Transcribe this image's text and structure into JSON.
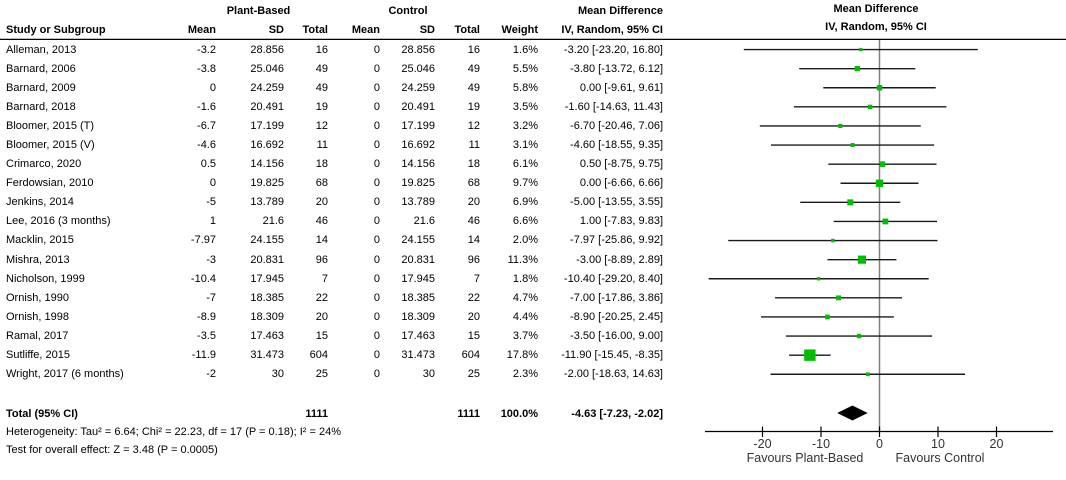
{
  "header": {
    "study": "Study or Subgroup",
    "group_pb": "Plant-Based",
    "group_ctrl": "Control",
    "mean": "Mean",
    "sd": "SD",
    "total": "Total",
    "weight": "Weight",
    "md_title": "Mean Difference",
    "md_sub": "IV, Random, 95% CI"
  },
  "colors": {
    "square": "#00bd00",
    "ci_line": "#1a1a1a",
    "zero_line": "#808080",
    "axis": "#000000",
    "diamond": "#000000"
  },
  "chart_data": {
    "type": "forest",
    "effect_measure": "Mean Difference",
    "method": "IV, Random, 95% CI",
    "x_ticks": [
      -20,
      -10,
      0,
      10,
      20
    ],
    "x_axis_range": [
      -29.8,
      29.7
    ],
    "favours_left": "Favours Plant-Based",
    "favours_right": "Favours Control",
    "studies": [
      {
        "name": "Alleman, 2013",
        "pb_mean": "-3.2",
        "pb_sd": "28.856",
        "pb_total": "16",
        "c_mean": "0",
        "c_sd": "28.856",
        "c_total": "16",
        "weight": "1.6%",
        "md_text": "-3.20 [-23.20, 16.80]",
        "md": -3.2,
        "lo": -23.2,
        "hi": 16.8,
        "w": 1.6
      },
      {
        "name": "Barnard, 2006",
        "pb_mean": "-3.8",
        "pb_sd": "25.046",
        "pb_total": "49",
        "c_mean": "0",
        "c_sd": "25.046",
        "c_total": "49",
        "weight": "5.5%",
        "md_text": "-3.80 [-13.72, 6.12]",
        "md": -3.8,
        "lo": -13.72,
        "hi": 6.12,
        "w": 5.5
      },
      {
        "name": "Barnard, 2009",
        "pb_mean": "0",
        "pb_sd": "24.259",
        "pb_total": "49",
        "c_mean": "0",
        "c_sd": "24.259",
        "c_total": "49",
        "weight": "5.8%",
        "md_text": "0.00 [-9.61, 9.61]",
        "md": 0,
        "lo": -9.61,
        "hi": 9.61,
        "w": 5.8
      },
      {
        "name": "Barnard, 2018",
        "pb_mean": "-1.6",
        "pb_sd": "20.491",
        "pb_total": "19",
        "c_mean": "0",
        "c_sd": "20.491",
        "c_total": "19",
        "weight": "3.5%",
        "md_text": "-1.60 [-14.63, 11.43]",
        "md": -1.6,
        "lo": -14.63,
        "hi": 11.43,
        "w": 3.5
      },
      {
        "name": "Bloomer, 2015 (T)",
        "pb_mean": "-6.7",
        "pb_sd": "17.199",
        "pb_total": "12",
        "c_mean": "0",
        "c_sd": "17.199",
        "c_total": "12",
        "weight": "3.2%",
        "md_text": "-6.70 [-20.46, 7.06]",
        "md": -6.7,
        "lo": -20.46,
        "hi": 7.06,
        "w": 3.2
      },
      {
        "name": "Bloomer, 2015 (V)",
        "pb_mean": "-4.6",
        "pb_sd": "16.692",
        "pb_total": "11",
        "c_mean": "0",
        "c_sd": "16.692",
        "c_total": "11",
        "weight": "3.1%",
        "md_text": "-4.60 [-18.55, 9.35]",
        "md": -4.6,
        "lo": -18.55,
        "hi": 9.35,
        "w": 3.1
      },
      {
        "name": "Crimarco, 2020",
        "pb_mean": "0.5",
        "pb_sd": "14.156",
        "pb_total": "18",
        "c_mean": "0",
        "c_sd": "14.156",
        "c_total": "18",
        "weight": "6.1%",
        "md_text": "0.50 [-8.75, 9.75]",
        "md": 0.5,
        "lo": -8.75,
        "hi": 9.75,
        "w": 6.1
      },
      {
        "name": "Ferdowsian, 2010",
        "pb_mean": "0",
        "pb_sd": "19.825",
        "pb_total": "68",
        "c_mean": "0",
        "c_sd": "19.825",
        "c_total": "68",
        "weight": "9.7%",
        "md_text": "0.00 [-6.66, 6.66]",
        "md": 0,
        "lo": -6.66,
        "hi": 6.66,
        "w": 9.7
      },
      {
        "name": "Jenkins, 2014",
        "pb_mean": "-5",
        "pb_sd": "13.789",
        "pb_total": "20",
        "c_mean": "0",
        "c_sd": "13.789",
        "c_total": "20",
        "weight": "6.9%",
        "md_text": "-5.00 [-13.55, 3.55]",
        "md": -5,
        "lo": -13.55,
        "hi": 3.55,
        "w": 6.9
      },
      {
        "name": "Lee, 2016 (3 months)",
        "pb_mean": "1",
        "pb_sd": "21.6",
        "pb_total": "46",
        "c_mean": "0",
        "c_sd": "21.6",
        "c_total": "46",
        "weight": "6.6%",
        "md_text": "1.00 [-7.83, 9.83]",
        "md": 1,
        "lo": -7.83,
        "hi": 9.83,
        "w": 6.6
      },
      {
        "name": "Macklin, 2015",
        "pb_mean": "-7.97",
        "pb_sd": "24.155",
        "pb_total": "14",
        "c_mean": "0",
        "c_sd": "24.155",
        "c_total": "14",
        "weight": "2.0%",
        "md_text": "-7.97 [-25.86, 9.92]",
        "md": -7.97,
        "lo": -25.86,
        "hi": 9.92,
        "w": 2.0
      },
      {
        "name": "Mishra, 2013",
        "pb_mean": "-3",
        "pb_sd": "20.831",
        "pb_total": "96",
        "c_mean": "0",
        "c_sd": "20.831",
        "c_total": "96",
        "weight": "11.3%",
        "md_text": "-3.00 [-8.89, 2.89]",
        "md": -3,
        "lo": -8.89,
        "hi": 2.89,
        "w": 11.3
      },
      {
        "name": "Nicholson, 1999",
        "pb_mean": "-10.4",
        "pb_sd": "17.945",
        "pb_total": "7",
        "c_mean": "0",
        "c_sd": "17.945",
        "c_total": "7",
        "weight": "1.8%",
        "md_text": "-10.40 [-29.20, 8.40]",
        "md": -10.4,
        "lo": -29.2,
        "hi": 8.4,
        "w": 1.8
      },
      {
        "name": "Ornish, 1990",
        "pb_mean": "-7",
        "pb_sd": "18.385",
        "pb_total": "22",
        "c_mean": "0",
        "c_sd": "18.385",
        "c_total": "22",
        "weight": "4.7%",
        "md_text": "-7.00 [-17.86, 3.86]",
        "md": -7,
        "lo": -17.86,
        "hi": 3.86,
        "w": 4.7
      },
      {
        "name": "Ornish, 1998",
        "pb_mean": "-8.9",
        "pb_sd": "18.309",
        "pb_total": "20",
        "c_mean": "0",
        "c_sd": "18.309",
        "c_total": "20",
        "weight": "4.4%",
        "md_text": "-8.90 [-20.25, 2.45]",
        "md": -8.9,
        "lo": -20.25,
        "hi": 2.45,
        "w": 4.4
      },
      {
        "name": "Ramal, 2017",
        "pb_mean": "-3.5",
        "pb_sd": "17.463",
        "pb_total": "15",
        "c_mean": "0",
        "c_sd": "17.463",
        "c_total": "15",
        "weight": "3.7%",
        "md_text": "-3.50 [-16.00, 9.00]",
        "md": -3.5,
        "lo": -16.0,
        "hi": 9.0,
        "w": 3.7
      },
      {
        "name": "Sutliffe, 2015",
        "pb_mean": "-11.9",
        "pb_sd": "31.473",
        "pb_total": "604",
        "c_mean": "0",
        "c_sd": "31.473",
        "c_total": "604",
        "weight": "17.8%",
        "md_text": "-11.90 [-15.45, -8.35]",
        "md": -11.9,
        "lo": -15.45,
        "hi": -8.35,
        "w": 17.8
      },
      {
        "name": "Wright, 2017 (6 months)",
        "pb_mean": "-2",
        "pb_sd": "30",
        "pb_total": "25",
        "c_mean": "0",
        "c_sd": "30",
        "c_total": "25",
        "weight": "2.3%",
        "md_text": "-2.00 [-18.63, 14.63]",
        "md": -2,
        "lo": -18.63,
        "hi": 14.63,
        "w": 2.3
      }
    ],
    "total": {
      "label": "Total (95% CI)",
      "pb_total": "1111",
      "c_total": "1111",
      "weight": "100.0%",
      "md_text": "-4.63 [-7.23, -2.02]",
      "md": -4.63,
      "lo": -7.23,
      "hi": -2.02
    },
    "heterogeneity": "Heterogeneity: Tau² = 6.64; Chi² = 22.23, df = 17 (P = 0.18); I² = 24%",
    "overall_effect": "Test for overall effect: Z = 3.48 (P = 0.0005)"
  }
}
